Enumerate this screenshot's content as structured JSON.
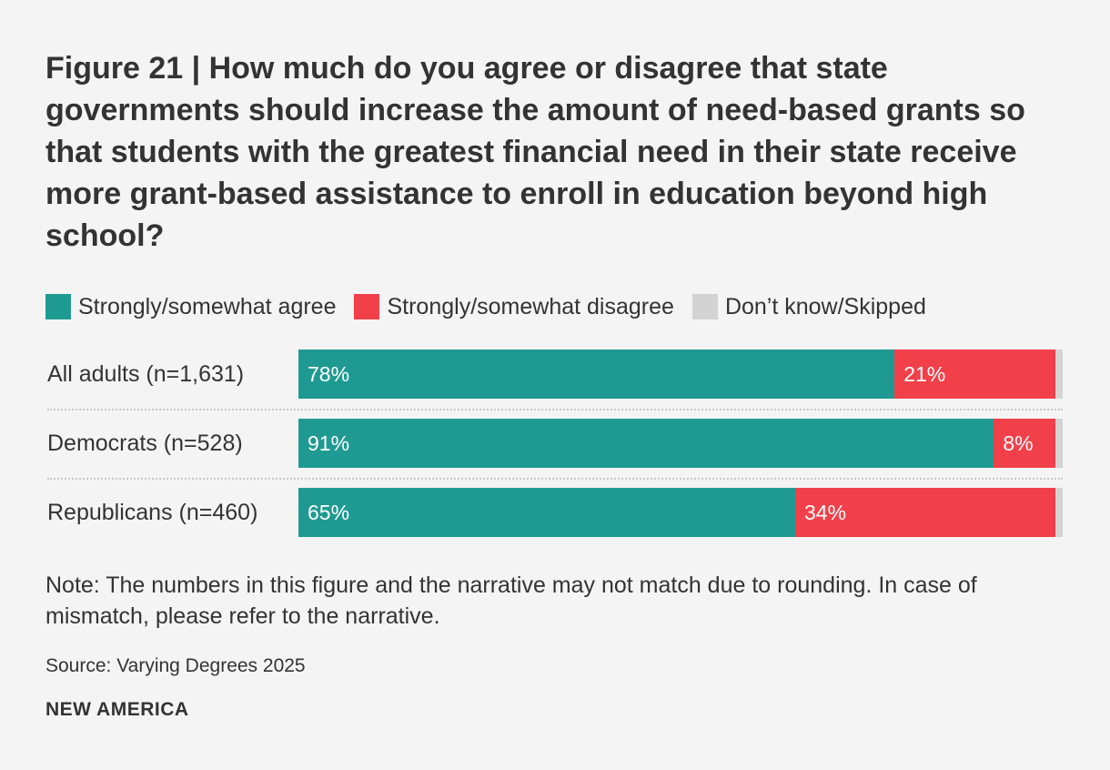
{
  "chart_data": {
    "type": "bar",
    "orientation": "horizontal",
    "stacked": true,
    "title": "Figure 21 | How much do you agree or disagree that state governments should increase the amount of need-based grants so that students with the greatest financial need in their state receive more grant-based assistance to enroll in education beyond high school?",
    "categories": [
      "All adults (n=1,631)",
      "Democrats (n=528)",
      "Republicans (n=460)"
    ],
    "series": [
      {
        "name": "Strongly/somewhat agree",
        "color": "#1f9a92",
        "values": [
          78,
          91,
          65
        ],
        "labels": [
          "78%",
          "91%",
          "65%"
        ]
      },
      {
        "name": "Strongly/somewhat disagree",
        "color": "#f2404a",
        "values": [
          21,
          8,
          34
        ],
        "labels": [
          "21%",
          "8%",
          "34%"
        ]
      },
      {
        "name": "Don’t know/Skipped",
        "color": "#d3d3d3",
        "values": [
          1,
          1,
          1
        ],
        "labels": [
          "",
          "",
          ""
        ]
      }
    ],
    "xlim": [
      0,
      100
    ],
    "legend_position": "top-left",
    "grid": false,
    "note": "Note: The numbers in this figure and the narrative may not match due to rounding. In case of mismatch, please refer to the narrative.",
    "source": "Source: Varying Degrees 2025",
    "brand": "NEW AMERICA"
  }
}
